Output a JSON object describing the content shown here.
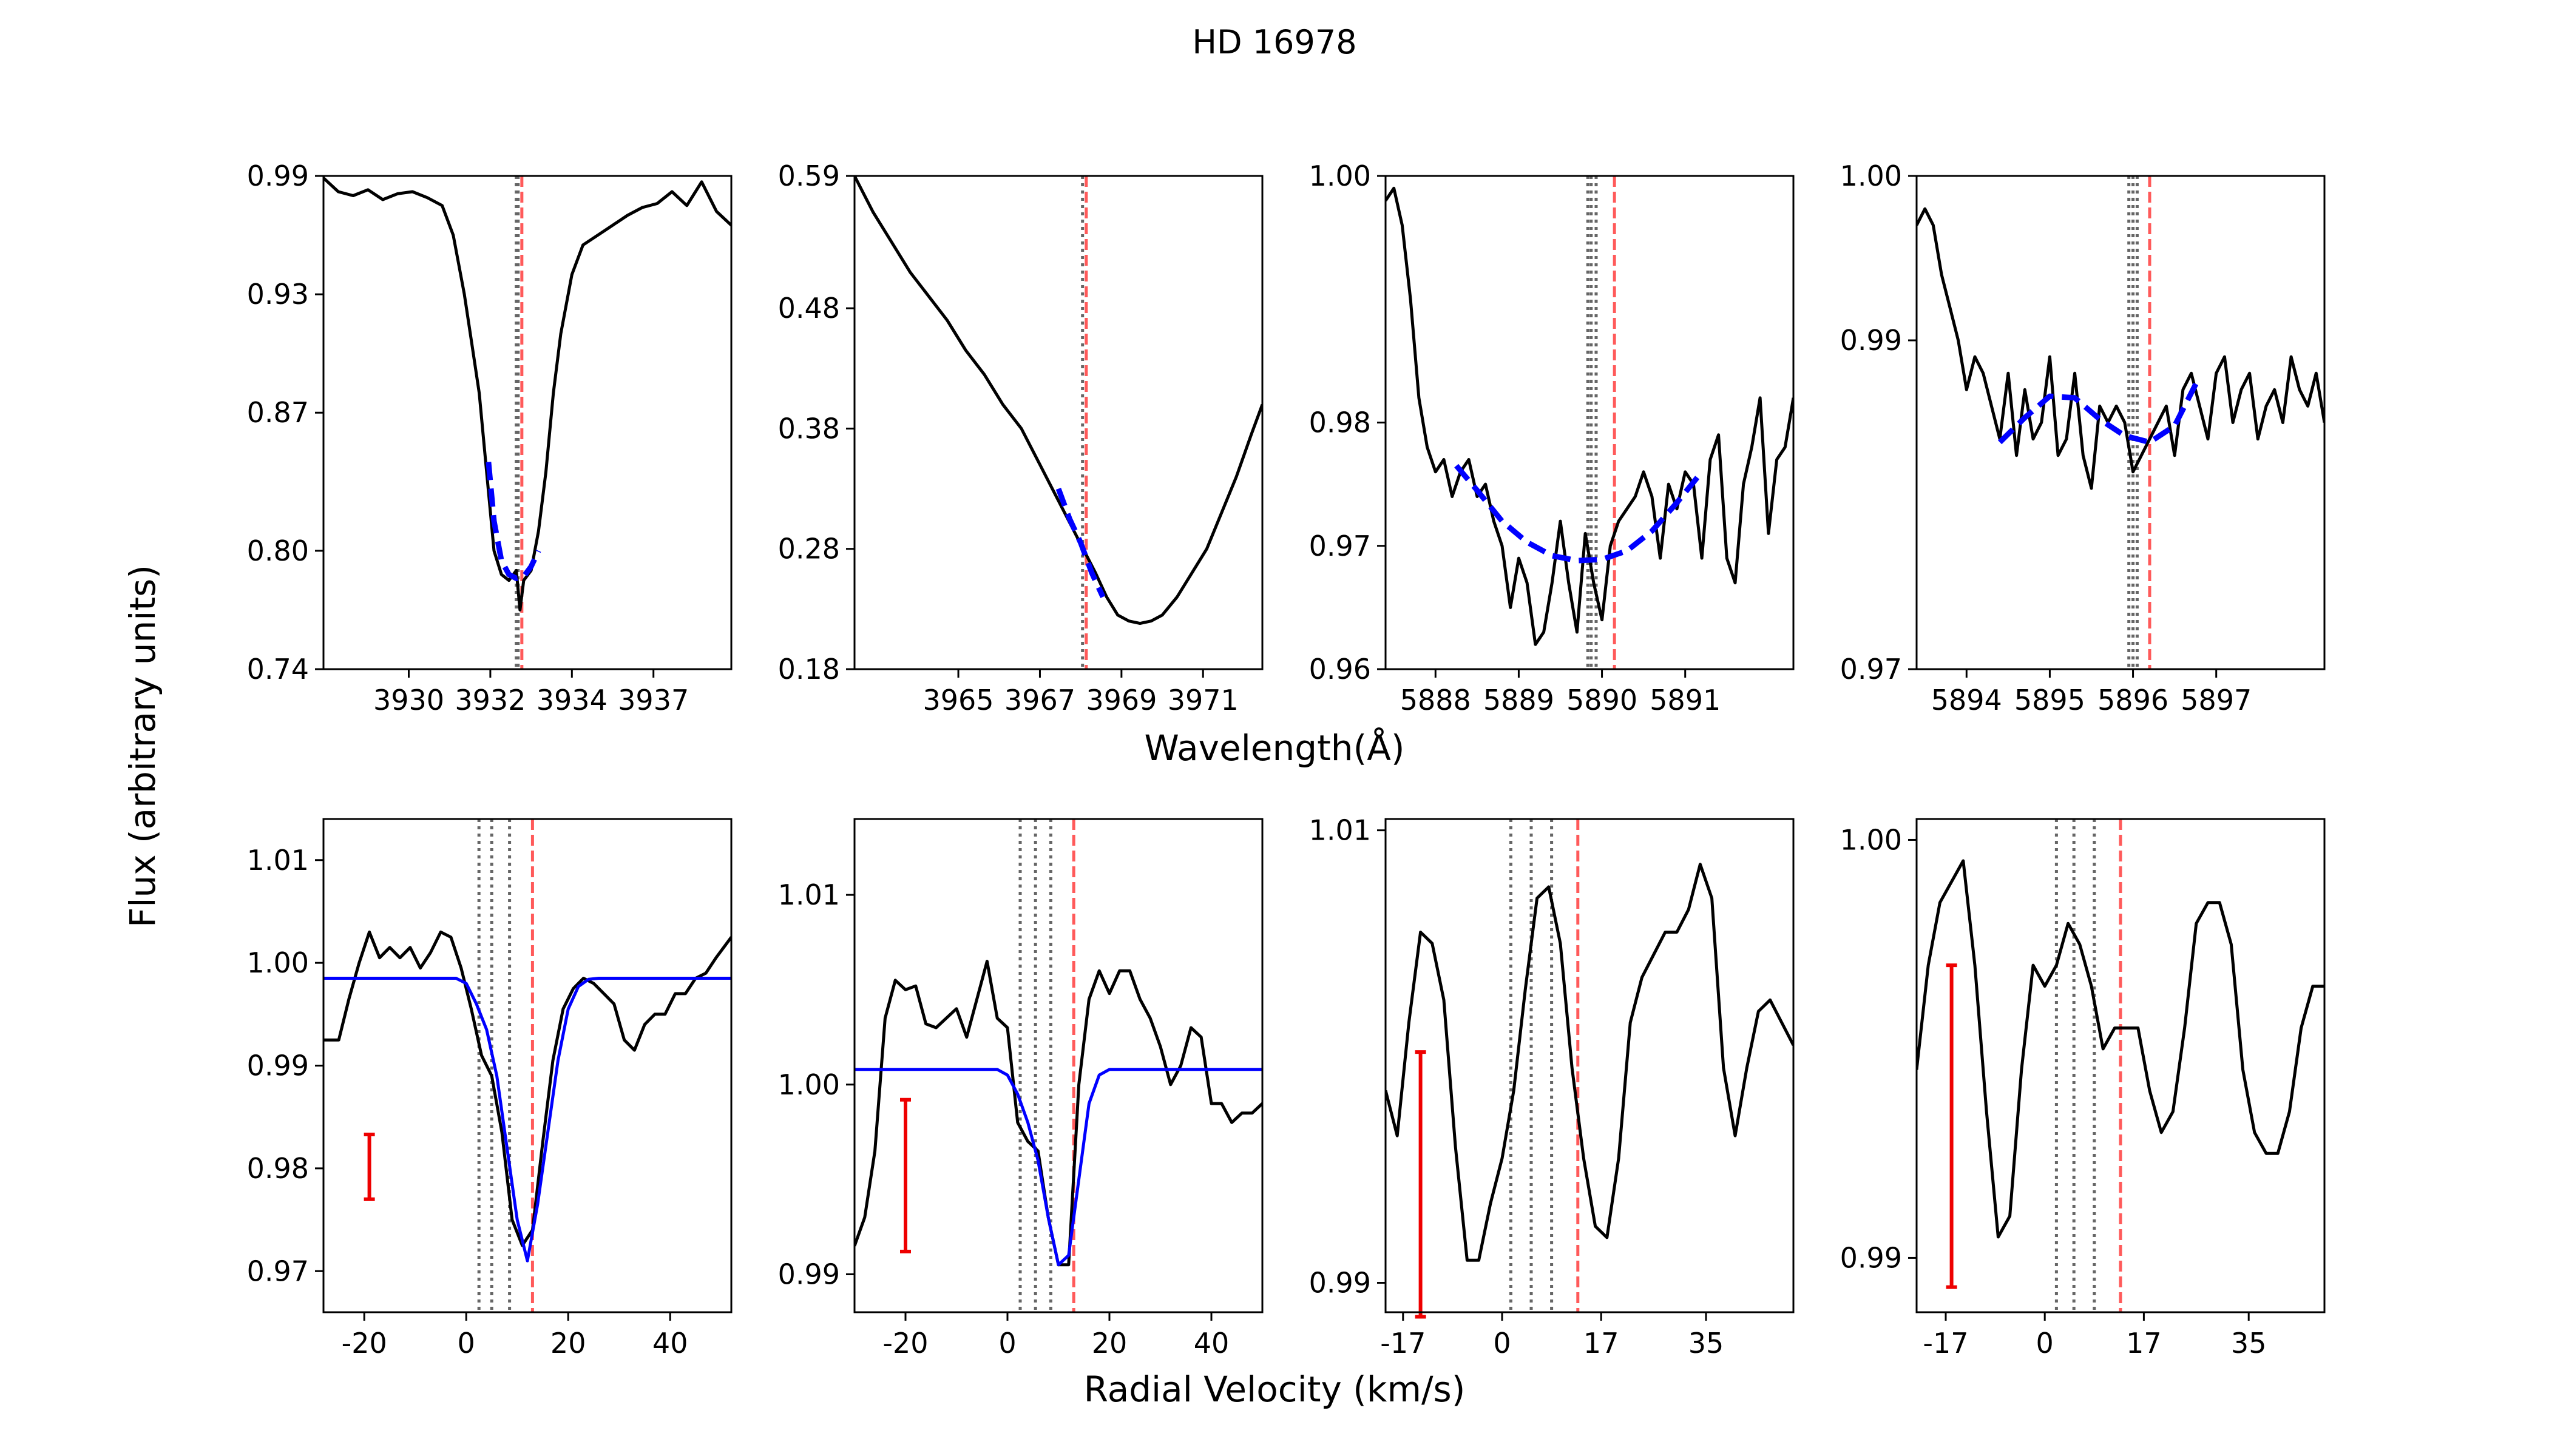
{
  "figure": {
    "title": "HD 16978",
    "top_xlabel": "Wavelength(Å)",
    "bottom_xlabel": "Radial Velocity (km/s)",
    "ylabel": "Flux (arbitrary units)"
  },
  "colors": {
    "data": "#000000",
    "fit": "#0000ff",
    "ref": "#ff5a5a",
    "comp": "#666666",
    "err": "#ee0000"
  },
  "chart_data": [
    {
      "id": "p1",
      "type": "line",
      "xlim": [
        3927.8,
        3938.8
      ],
      "ylim": [
        0.74,
        0.99
      ],
      "xticks": [
        3930.1,
        3932.3,
        3934.5,
        3936.7
      ],
      "xticklabels": [
        "3930",
        "3932",
        "3934",
        "3937"
      ],
      "yticks": [
        0.74,
        0.8,
        0.87,
        0.93,
        0.99
      ],
      "yticklabels": [
        "0.74",
        "0.80",
        "0.87",
        "0.93",
        "0.99"
      ],
      "data": {
        "x": [
          3927.8,
          3928.2,
          3928.6,
          3929.0,
          3929.4,
          3929.8,
          3930.2,
          3930.6,
          3931.0,
          3931.3,
          3931.6,
          3931.8,
          3932.0,
          3932.2,
          3932.4,
          3932.6,
          3932.8,
          3933.0,
          3933.1,
          3933.2,
          3933.4,
          3933.6,
          3933.8,
          3934.0,
          3934.2,
          3934.5,
          3934.8,
          3935.2,
          3935.6,
          3936.0,
          3936.4,
          3936.8,
          3937.2,
          3937.6,
          3938.0,
          3938.4,
          3938.8
        ],
        "y": [
          0.989,
          0.982,
          0.98,
          0.983,
          0.978,
          0.981,
          0.982,
          0.979,
          0.975,
          0.96,
          0.93,
          0.905,
          0.88,
          0.84,
          0.8,
          0.788,
          0.785,
          0.79,
          0.77,
          0.785,
          0.79,
          0.81,
          0.84,
          0.88,
          0.91,
          0.94,
          0.955,
          0.96,
          0.965,
          0.97,
          0.974,
          0.976,
          0.982,
          0.975,
          0.987,
          0.972,
          0.965
        ]
      },
      "fit": {
        "x": [
          3932.25,
          3932.4,
          3932.6,
          3932.8,
          3933.0,
          3933.2,
          3933.4,
          3933.6
        ],
        "y": [
          0.845,
          0.815,
          0.795,
          0.788,
          0.786,
          0.787,
          0.792,
          0.8
        ]
      },
      "ref_lines": [
        3933.15
      ],
      "comp_lines": [
        3933.0,
        3933.05
      ],
      "error_bar": null
    },
    {
      "id": "p2",
      "type": "line",
      "xlim": [
        3961.8,
        3972.8
      ],
      "ylim": [
        0.18,
        0.59
      ],
      "xticks": [
        3964.6,
        3966.8,
        3969.0,
        3971.2
      ],
      "xticklabels": [
        "3965",
        "3967",
        "3969",
        "3971"
      ],
      "yticks": [
        0.18,
        0.28,
        0.38,
        0.48,
        0.59
      ],
      "yticklabels": [
        "0.18",
        "0.28",
        "0.38",
        "0.48",
        "0.59"
      ],
      "data": {
        "x": [
          3961.8,
          3962.3,
          3962.8,
          3963.3,
          3963.8,
          3964.3,
          3964.8,
          3965.3,
          3965.8,
          3966.3,
          3966.8,
          3967.3,
          3967.8,
          3968.3,
          3968.6,
          3968.9,
          3969.2,
          3969.5,
          3969.8,
          3970.1,
          3970.5,
          3970.9,
          3971.3,
          3971.7,
          3972.1,
          3972.5,
          3972.8
        ],
        "y": [
          0.59,
          0.56,
          0.535,
          0.51,
          0.49,
          0.47,
          0.445,
          0.425,
          0.4,
          0.38,
          0.35,
          0.32,
          0.29,
          0.26,
          0.24,
          0.225,
          0.22,
          0.218,
          0.22,
          0.225,
          0.24,
          0.26,
          0.28,
          0.31,
          0.34,
          0.375,
          0.4
        ]
      },
      "fit": {
        "x": [
          3967.3,
          3967.6,
          3967.9,
          3968.2,
          3968.5
        ],
        "y": [
          0.33,
          0.305,
          0.285,
          0.26,
          0.24
        ]
      },
      "ref_lines": [
        3968.05
      ],
      "comp_lines": [
        3967.95
      ],
      "error_bar": null
    },
    {
      "id": "p3",
      "type": "line",
      "xlim": [
        5887.2,
        5892.1
      ],
      "ylim": [
        0.96,
        1.0
      ],
      "xticks": [
        5887.8,
        5888.8,
        5889.8,
        5890.8
      ],
      "xticklabels": [
        "5888",
        "5889",
        "5890",
        "5891"
      ],
      "yticks": [
        0.96,
        0.97,
        0.98,
        1.0
      ],
      "yticklabels": [
        "0.96",
        "0.97",
        "0.98",
        "1.00"
      ],
      "data": {
        "x": [
          5887.2,
          5887.3,
          5887.4,
          5887.5,
          5887.6,
          5887.7,
          5887.8,
          5887.9,
          5888.0,
          5888.1,
          5888.2,
          5888.3,
          5888.4,
          5888.5,
          5888.6,
          5888.7,
          5888.8,
          5888.9,
          5889.0,
          5889.1,
          5889.2,
          5889.3,
          5889.4,
          5889.5,
          5889.6,
          5889.7,
          5889.8,
          5889.9,
          5890.0,
          5890.1,
          5890.2,
          5890.3,
          5890.4,
          5890.5,
          5890.6,
          5890.7,
          5890.8,
          5890.9,
          5891.0,
          5891.1,
          5891.2,
          5891.3,
          5891.4,
          5891.5,
          5891.6,
          5891.7,
          5891.8,
          5891.9,
          5892.0,
          5892.1
        ],
        "y": [
          0.998,
          0.999,
          0.996,
          0.99,
          0.982,
          0.978,
          0.976,
          0.977,
          0.974,
          0.976,
          0.977,
          0.974,
          0.975,
          0.972,
          0.97,
          0.965,
          0.969,
          0.967,
          0.962,
          0.963,
          0.967,
          0.972,
          0.967,
          0.963,
          0.971,
          0.967,
          0.964,
          0.97,
          0.972,
          0.973,
          0.974,
          0.976,
          0.974,
          0.969,
          0.975,
          0.973,
          0.976,
          0.975,
          0.969,
          0.977,
          0.979,
          0.969,
          0.967,
          0.975,
          0.978,
          0.982,
          0.971,
          0.977,
          0.978,
          0.982
        ]
      },
      "fit": {
        "x": [
          5888.05,
          5888.3,
          5888.6,
          5888.9,
          5889.2,
          5889.5,
          5889.8,
          5890.1,
          5890.4,
          5890.7,
          5891.0
        ],
        "y": [
          0.9765,
          0.9745,
          0.972,
          0.9703,
          0.9692,
          0.9688,
          0.9689,
          0.9696,
          0.9712,
          0.9735,
          0.976
        ]
      },
      "ref_lines": [
        5889.95
      ],
      "comp_lines": [
        5889.63,
        5889.67,
        5889.73
      ],
      "error_bar": null
    },
    {
      "id": "p4",
      "type": "line",
      "xlim": [
        5893.2,
        5898.1
      ],
      "ylim": [
        0.97,
        1.0
      ],
      "xticks": [
        5893.8,
        5894.8,
        5895.8,
        5896.8
      ],
      "xticklabels": [
        "5894",
        "5895",
        "5896",
        "5897"
      ],
      "yticks": [
        0.97,
        0.99,
        1.0
      ],
      "yticklabels": [
        "0.97",
        "0.99",
        "1.00"
      ],
      "data": {
        "x": [
          5893.2,
          5893.3,
          5893.4,
          5893.5,
          5893.6,
          5893.7,
          5893.8,
          5893.9,
          5894.0,
          5894.1,
          5894.2,
          5894.3,
          5894.4,
          5894.5,
          5894.6,
          5894.7,
          5894.8,
          5894.9,
          5895.0,
          5895.1,
          5895.2,
          5895.3,
          5895.4,
          5895.5,
          5895.6,
          5895.7,
          5895.8,
          5895.9,
          5896.0,
          5896.1,
          5896.2,
          5896.3,
          5896.4,
          5896.5,
          5896.6,
          5896.7,
          5896.8,
          5896.9,
          5897.0,
          5897.1,
          5897.2,
          5897.3,
          5897.4,
          5897.5,
          5897.6,
          5897.7,
          5897.8,
          5897.9,
          5898.0,
          5898.1
        ],
        "y": [
          0.997,
          0.998,
          0.997,
          0.994,
          0.992,
          0.99,
          0.987,
          0.989,
          0.988,
          0.986,
          0.984,
          0.988,
          0.983,
          0.987,
          0.984,
          0.985,
          0.989,
          0.983,
          0.984,
          0.988,
          0.983,
          0.981,
          0.986,
          0.985,
          0.986,
          0.985,
          0.982,
          0.983,
          0.984,
          0.985,
          0.986,
          0.983,
          0.987,
          0.988,
          0.986,
          0.984,
          0.988,
          0.989,
          0.985,
          0.987,
          0.988,
          0.984,
          0.986,
          0.987,
          0.985,
          0.989,
          0.987,
          0.986,
          0.988,
          0.985
        ]
      },
      "fit": {
        "x": [
          5894.2,
          5894.5,
          5894.8,
          5895.1,
          5895.4,
          5895.7,
          5896.0,
          5896.3,
          5896.6
        ],
        "y": [
          0.9838,
          0.9853,
          0.9866,
          0.9865,
          0.9852,
          0.9842,
          0.9838,
          0.9848,
          0.9878
        ]
      },
      "ref_lines": [
        5896.0
      ],
      "comp_lines": [
        5895.75,
        5895.8,
        5895.85
      ],
      "error_bar": null
    },
    {
      "id": "p5",
      "type": "line",
      "xlim": [
        -28,
        52
      ],
      "ylim": [
        0.966,
        1.014
      ],
      "xticks": [
        -20,
        0,
        20,
        40
      ],
      "xticklabels": [
        "-20",
        "0",
        "20",
        "40"
      ],
      "yticks": [
        0.97,
        0.98,
        0.99,
        1.0,
        1.01
      ],
      "yticklabels": [
        "0.97",
        "0.98",
        "0.99",
        "1.00",
        "1.01"
      ],
      "data": {
        "x": [
          -28,
          -25,
          -23,
          -21,
          -19,
          -17,
          -15,
          -13,
          -11,
          -9,
          -7,
          -5,
          -3,
          -1,
          1,
          3,
          5,
          7,
          9,
          11,
          13,
          15,
          17,
          19,
          21,
          23,
          25,
          27,
          29,
          31,
          33,
          35,
          37,
          39,
          41,
          43,
          45,
          47,
          49,
          52
        ],
        "y": [
          0.9925,
          0.9925,
          0.9965,
          1.0,
          1.003,
          1.0005,
          1.0015,
          1.0005,
          1.0015,
          0.9995,
          1.001,
          1.003,
          1.0025,
          0.9995,
          0.9955,
          0.991,
          0.989,
          0.9835,
          0.975,
          0.9725,
          0.974,
          0.9825,
          0.9905,
          0.9955,
          0.9975,
          0.9985,
          0.998,
          0.997,
          0.996,
          0.9925,
          0.9915,
          0.994,
          0.995,
          0.995,
          0.997,
          0.997,
          0.9985,
          0.999,
          1.0005,
          1.0025
        ]
      },
      "fit": {
        "x": [
          -28,
          -10,
          -2,
          0,
          2,
          4,
          6,
          8,
          10,
          12,
          14,
          16,
          18,
          20,
          22,
          24,
          26,
          30,
          40,
          52
        ],
        "y": [
          0.9985,
          0.9985,
          0.9985,
          0.998,
          0.996,
          0.9935,
          0.989,
          0.982,
          0.975,
          0.971,
          0.9765,
          0.9835,
          0.9905,
          0.9955,
          0.9977,
          0.9984,
          0.9985,
          0.9985,
          0.9985,
          0.9985
        ]
      },
      "ref_lines": [
        13
      ],
      "comp_lines": [
        2.5,
        5,
        8.5
      ],
      "error_bar": {
        "x": -19,
        "ylo": 0.977,
        "yhi": 0.9833
      }
    },
    {
      "id": "p6",
      "type": "line",
      "xlim": [
        -30,
        50
      ],
      "ylim": [
        0.988,
        1.014
      ],
      "xticks": [
        -20,
        0,
        20,
        40
      ],
      "xticklabels": [
        "-20",
        "0",
        "20",
        "40"
      ],
      "yticks": [
        0.99,
        1.0,
        1.01
      ],
      "yticklabels": [
        "0.99",
        "1.00",
        "1.01"
      ],
      "data": {
        "x": [
          -30,
          -28,
          -26,
          -24,
          -22,
          -20,
          -18,
          -16,
          -14,
          -12,
          -10,
          -8,
          -6,
          -4,
          -2,
          0,
          2,
          4,
          6,
          8,
          10,
          12,
          14,
          16,
          18,
          20,
          22,
          24,
          26,
          28,
          30,
          32,
          34,
          36,
          38,
          40,
          42,
          44,
          46,
          48,
          50
        ],
        "y": [
          0.9915,
          0.993,
          0.9965,
          1.0035,
          1.0055,
          1.005,
          1.0052,
          1.0032,
          1.003,
          1.0035,
          1.004,
          1.0025,
          1.0045,
          1.0065,
          1.0035,
          1.003,
          0.998,
          0.997,
          0.9965,
          0.993,
          0.9905,
          0.9905,
          1.0,
          1.0045,
          1.006,
          1.0048,
          1.006,
          1.006,
          1.0045,
          1.0035,
          1.002,
          1.0,
          1.001,
          1.003,
          1.0025,
          0.999,
          0.999,
          0.998,
          0.9985,
          0.9985,
          0.999
        ]
      },
      "fit": {
        "x": [
          -30,
          -10,
          -2,
          0,
          2,
          4,
          6,
          8,
          10,
          12,
          14,
          16,
          18,
          20,
          22,
          24,
          30,
          40,
          50
        ],
        "y": [
          1.0008,
          1.0008,
          1.0008,
          1.0005,
          0.9995,
          0.998,
          0.996,
          0.993,
          0.9905,
          0.991,
          0.995,
          0.999,
          1.0005,
          1.0008,
          1.0008,
          1.0008,
          1.0008,
          1.0008,
          1.0008
        ]
      },
      "ref_lines": [
        13
      ],
      "comp_lines": [
        2.5,
        5.5,
        8.5
      ],
      "error_bar": {
        "x": -20,
        "ylo": 0.9912,
        "yhi": 0.9992
      }
    },
    {
      "id": "p7",
      "type": "line",
      "xlim": [
        -20,
        50
      ],
      "ylim": [
        0.9887,
        1.0105
      ],
      "xticks": [
        -17,
        0,
        17,
        35
      ],
      "xticklabels": [
        "-17",
        "0",
        "17",
        "35"
      ],
      "yticks": [
        0.99,
        1.01
      ],
      "yticklabels": [
        "0.99",
        "1.01"
      ],
      "data": {
        "x": [
          -20,
          -18,
          -16,
          -14,
          -12,
          -10,
          -8,
          -6,
          -4,
          -2,
          0,
          2,
          4,
          6,
          8,
          10,
          12,
          14,
          16,
          18,
          20,
          22,
          24,
          26,
          28,
          30,
          32,
          34,
          36,
          38,
          40,
          42,
          44,
          46,
          48,
          50
        ],
        "y": [
          0.9985,
          0.9965,
          1.0015,
          1.0055,
          1.005,
          1.0025,
          0.996,
          0.991,
          0.991,
          0.9935,
          0.9955,
          0.9985,
          1.003,
          1.007,
          1.0075,
          1.005,
          0.9995,
          0.9955,
          0.9925,
          0.992,
          0.9955,
          1.0015,
          1.0035,
          1.0045,
          1.0055,
          1.0055,
          1.0065,
          1.0085,
          1.007,
          0.9995,
          0.9965,
          0.9995,
          1.002,
          1.0025,
          1.0015,
          1.0005
        ]
      },
      "fit": null,
      "ref_lines": [
        13
      ],
      "comp_lines": [
        1.5,
        5,
        8.5
      ],
      "error_bar": {
        "x": -14,
        "ylo": 0.9885,
        "yhi": 1.0002
      }
    },
    {
      "id": "p8",
      "type": "line",
      "xlim": [
        -22,
        48
      ],
      "ylim": [
        0.9887,
        1.0005
      ],
      "xticks": [
        -17,
        0,
        17,
        35
      ],
      "xticklabels": [
        "-17",
        "0",
        "17",
        "35"
      ],
      "yticks": [
        0.99,
        1.0
      ],
      "yticklabels": [
        "0.99",
        "1.00"
      ],
      "data": {
        "x": [
          -22,
          -20,
          -18,
          -16,
          -14,
          -12,
          -10,
          -8,
          -6,
          -4,
          -2,
          0,
          2,
          4,
          6,
          8,
          10,
          12,
          14,
          16,
          18,
          20,
          22,
          24,
          26,
          28,
          30,
          32,
          34,
          36,
          38,
          40,
          42,
          44,
          46,
          48
        ],
        "y": [
          0.9945,
          0.997,
          0.9985,
          0.999,
          0.9995,
          0.997,
          0.9935,
          0.9905,
          0.991,
          0.9945,
          0.997,
          0.9965,
          0.997,
          0.998,
          0.9975,
          0.9965,
          0.995,
          0.9955,
          0.9955,
          0.9955,
          0.994,
          0.993,
          0.9935,
          0.9955,
          0.998,
          0.9985,
          0.9985,
          0.9975,
          0.9945,
          0.993,
          0.9925,
          0.9925,
          0.9935,
          0.9955,
          0.9965,
          0.9965
        ]
      },
      "fit": null,
      "ref_lines": [
        13
      ],
      "comp_lines": [
        2,
        5,
        8.5
      ],
      "error_bar": {
        "x": -16,
        "ylo": 0.9893,
        "yhi": 0.997
      }
    }
  ]
}
